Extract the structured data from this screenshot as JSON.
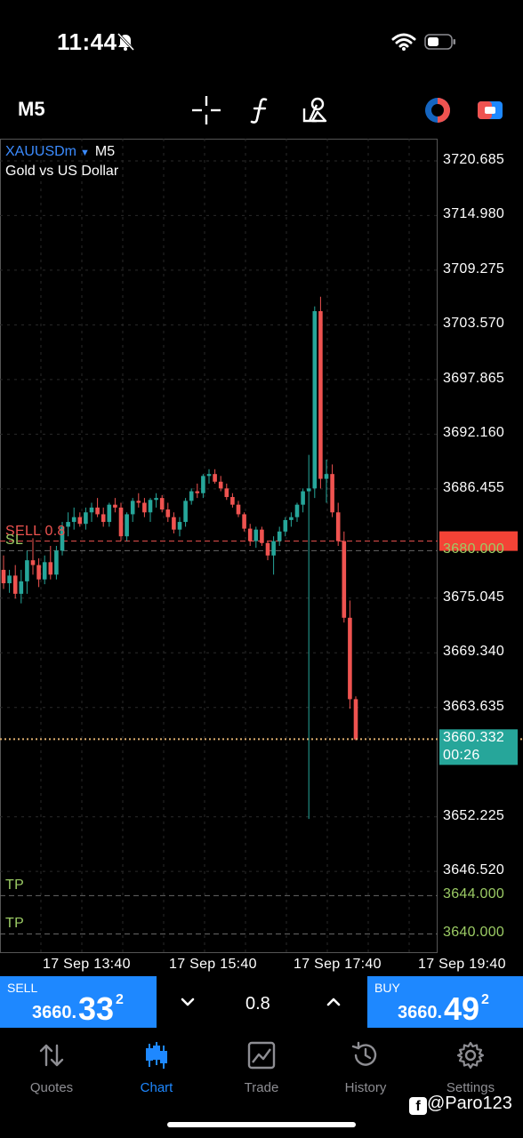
{
  "status": {
    "time": "11:44"
  },
  "toolbar": {
    "timeframe": "M5",
    "icons": [
      "crosshair-icon",
      "function-icon",
      "objects-icon",
      "exness-logo-icon",
      "trade-toggle-icon"
    ]
  },
  "chart": {
    "symbol": "XAUUSDm",
    "symbol_timeframe": "M5",
    "description": "Gold vs US Dollar",
    "y_axis_labels": [
      "3720.685",
      "3714.980",
      "3709.275",
      "3703.570",
      "3697.865",
      "3692.160",
      "3686.455",
      "3680.000",
      "3675.045",
      "3669.340",
      "3663.635",
      "3660.332",
      "3652.225",
      "3646.520",
      "3644.000",
      "3640.000"
    ],
    "current_price": "3660.332",
    "countdown": "00:26",
    "x_axis_labels": [
      "17 Sep 13:40",
      "17 Sep 15:40",
      "17 Sep 17:40",
      "17 Sep 19:40"
    ],
    "levels": {
      "sell": "SELL 0.8",
      "sl": "SL",
      "tp1": "TP",
      "tp2": "TP"
    },
    "colors": {
      "bull": "#26a69a",
      "bear": "#ef5350",
      "sell_line": "#ef5350",
      "sl_line": "#9ccc65",
      "tp_line": "#9ccc65",
      "price_line": "#e0b070",
      "accent": "#1e88ff"
    }
  },
  "chart_data": {
    "type": "candlestick",
    "x": [
      "17 Sep 13:40",
      "17 Sep 15:40",
      "17 Sep 17:40",
      "17 Sep 19:40"
    ],
    "ohlc": [
      [
        3678.0,
        3679.5,
        3676.0,
        3676.6
      ],
      [
        3676.6,
        3678.0,
        3675.6,
        3677.4
      ],
      [
        3677.4,
        3678.5,
        3675.0,
        3675.5
      ],
      [
        3675.5,
        3678.0,
        3674.5,
        3676.8
      ],
      [
        3676.8,
        3680.0,
        3675.5,
        3679.0
      ],
      [
        3679.0,
        3681.3,
        3677.5,
        3678.5
      ],
      [
        3678.5,
        3679.2,
        3676.2,
        3677.0
      ],
      [
        3677.0,
        3679.5,
        3676.5,
        3678.8
      ],
      [
        3678.8,
        3680.5,
        3677.0,
        3677.5
      ],
      [
        3677.5,
        3680.5,
        3677.0,
        3680.0
      ],
      [
        3680.0,
        3683.0,
        3679.5,
        3682.5
      ],
      [
        3682.5,
        3684.0,
        3681.5,
        3683.0
      ],
      [
        3683.0,
        3684.5,
        3682.2,
        3683.5
      ],
      [
        3683.5,
        3684.0,
        3682.5,
        3682.8
      ],
      [
        3682.8,
        3684.5,
        3682.2,
        3684.0
      ],
      [
        3684.0,
        3685.0,
        3683.0,
        3684.5
      ],
      [
        3684.5,
        3685.5,
        3683.5,
        3683.8
      ],
      [
        3683.8,
        3684.5,
        3682.5,
        3683.0
      ],
      [
        3683.0,
        3685.0,
        3682.5,
        3684.8
      ],
      [
        3684.8,
        3685.5,
        3684.0,
        3684.5
      ],
      [
        3684.5,
        3685.0,
        3681.0,
        3681.5
      ],
      [
        3681.5,
        3684.0,
        3681.0,
        3683.8
      ],
      [
        3683.8,
        3685.5,
        3683.0,
        3685.2
      ],
      [
        3685.2,
        3686.0,
        3684.5,
        3685.0
      ],
      [
        3685.0,
        3685.5,
        3683.5,
        3684.0
      ],
      [
        3684.0,
        3685.5,
        3683.0,
        3685.3
      ],
      [
        3685.3,
        3686.0,
        3684.5,
        3685.5
      ],
      [
        3685.5,
        3685.8,
        3684.0,
        3684.3
      ],
      [
        3684.3,
        3685.0,
        3683.0,
        3683.5
      ],
      [
        3683.5,
        3684.0,
        3681.8,
        3682.2
      ],
      [
        3682.2,
        3683.5,
        3681.5,
        3683.0
      ],
      [
        3683.0,
        3685.5,
        3682.5,
        3685.2
      ],
      [
        3685.2,
        3686.5,
        3684.8,
        3686.2
      ],
      [
        3686.2,
        3687.0,
        3685.5,
        3686.0
      ],
      [
        3686.0,
        3688.0,
        3685.5,
        3687.8
      ],
      [
        3687.8,
        3688.5,
        3687.0,
        3688.0
      ],
      [
        3688.0,
        3688.5,
        3687.0,
        3687.2
      ],
      [
        3687.2,
        3687.8,
        3686.2,
        3686.5
      ],
      [
        3686.5,
        3687.0,
        3685.3,
        3685.6
      ],
      [
        3685.6,
        3686.0,
        3684.5,
        3684.8
      ],
      [
        3684.8,
        3685.2,
        3683.5,
        3683.8
      ],
      [
        3683.8,
        3684.0,
        3682.0,
        3682.3
      ],
      [
        3682.3,
        3682.8,
        3680.5,
        3681.0
      ],
      [
        3681.0,
        3682.5,
        3680.3,
        3682.2
      ],
      [
        3682.2,
        3682.5,
        3680.5,
        3680.8
      ],
      [
        3680.8,
        3681.0,
        3679.0,
        3679.5
      ],
      [
        3679.5,
        3681.5,
        3677.5,
        3681.0
      ],
      [
        3681.0,
        3682.5,
        3680.5,
        3682.0
      ],
      [
        3682.0,
        3683.5,
        3681.5,
        3683.2
      ],
      [
        3683.2,
        3684.0,
        3682.5,
        3683.5
      ],
      [
        3683.5,
        3685.0,
        3683.0,
        3684.8
      ],
      [
        3684.8,
        3686.5,
        3684.0,
        3686.2
      ],
      [
        3686.2,
        3690.0,
        3652.0,
        3686.5
      ],
      [
        3686.5,
        3705.5,
        3685.5,
        3705.0
      ],
      [
        3705.0,
        3706.5,
        3686.5,
        3687.5
      ],
      [
        3687.5,
        3689.5,
        3685.0,
        3688.0
      ],
      [
        3688.0,
        3689.0,
        3683.5,
        3684.0
      ],
      [
        3684.0,
        3685.0,
        3680.5,
        3681.0
      ],
      [
        3681.0,
        3682.0,
        3672.5,
        3673.0
      ],
      [
        3673.0,
        3674.8,
        3663.5,
        3664.5
      ],
      [
        3664.5,
        3664.8,
        3660.2,
        3660.3
      ]
    ],
    "ylim": [
      3638.0,
      3723.0
    ],
    "levels": {
      "sell": 3681.0,
      "sl": 3680.0,
      "tp1": 3644.0,
      "tp2": 3640.0,
      "current": 3660.332
    }
  },
  "trade": {
    "sell_label": "SELL",
    "sell_price_prefix": "3660.",
    "sell_price_big": "33",
    "sell_price_sup": "2",
    "buy_label": "BUY",
    "buy_price_prefix": "3660.",
    "buy_price_big": "49",
    "buy_price_sup": "2",
    "lot": "0.8"
  },
  "tabs": [
    {
      "label": "Quotes",
      "icon": "quotes-arrows-icon",
      "active": false
    },
    {
      "label": "Chart",
      "icon": "chart-candles-icon",
      "active": true
    },
    {
      "label": "Trade",
      "icon": "trade-chart-icon",
      "active": false
    },
    {
      "label": "History",
      "icon": "history-icon",
      "active": false
    },
    {
      "label": "Settings",
      "icon": "settings-gear-icon",
      "active": false
    }
  ],
  "watermark": "@Paro123"
}
